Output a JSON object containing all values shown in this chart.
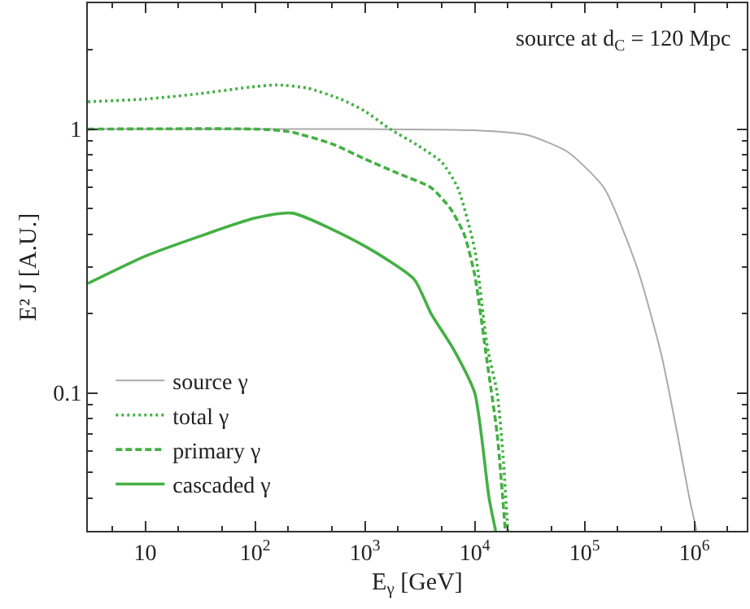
{
  "chart_data": {
    "type": "line",
    "xlabel": "E$_{γ}$ [GeV]",
    "ylabel": "E² J [A.U.]",
    "annotations": [
      "source at d$_{C}$ = 120 Mpc"
    ],
    "log": "xy",
    "legend": "bottom left",
    "xlim": [
      3,
      3000000
    ],
    "ylim": [
      0.03,
      3
    ],
    "xticks": [
      10,
      {
        "value": 100,
        "label": "10$^{2}$"
      },
      {
        "value": 1000,
        "label": "10$^{3}$"
      },
      {
        "value": 10000,
        "label": "10$^{4}$"
      },
      {
        "value": 100000,
        "label": "10$^{5}$"
      },
      {
        "value": 1000000,
        "label": "10$^{6}$"
      }
    ],
    "yticks": [
      0.1,
      1
    ],
    "series": [
      {
        "name": "source γ",
        "color": "#aaaaaa",
        "line_style": "solid",
        "x": [
          3,
          1000,
          10000,
          30000,
          70000,
          150000,
          300000,
          500000,
          700000,
          900000,
          1050000
        ],
        "values": [
          1,
          1,
          0.99,
          0.95,
          0.82,
          0.6,
          0.3,
          0.14,
          0.07,
          0.04,
          0.03
        ]
      },
      {
        "name": "total γ",
        "color": "#44b044",
        "line_style": "dotted",
        "x": [
          3,
          10,
          30,
          100,
          160,
          300,
          600,
          1000,
          1700,
          3000,
          5000,
          7000,
          10000,
          13000,
          16000,
          18000,
          20000
        ],
        "values": [
          1.27,
          1.3,
          1.36,
          1.45,
          1.47,
          1.43,
          1.3,
          1.17,
          1.0,
          0.87,
          0.75,
          0.6,
          0.35,
          0.15,
          0.1,
          0.06,
          0.03
        ]
      },
      {
        "name": "primary γ",
        "color": "#44b044",
        "line_style": "dashed",
        "x": [
          3,
          100,
          200,
          500,
          1000,
          2000,
          4000,
          6000,
          8000,
          10000,
          13000,
          16000,
          19000
        ],
        "values": [
          1,
          1,
          0.98,
          0.88,
          0.77,
          0.68,
          0.6,
          0.5,
          0.4,
          0.28,
          0.13,
          0.07,
          0.03
        ]
      },
      {
        "name": "cascaded γ",
        "color": "#44b044",
        "line_style": "solid",
        "x": [
          3,
          10,
          30,
          100,
          220,
          1000,
          2800,
          4000,
          6500,
          10000,
          13500,
          15500
        ],
        "values": [
          0.26,
          0.33,
          0.39,
          0.46,
          0.48,
          0.36,
          0.27,
          0.2,
          0.145,
          0.1,
          0.04,
          0.03
        ]
      }
    ]
  }
}
